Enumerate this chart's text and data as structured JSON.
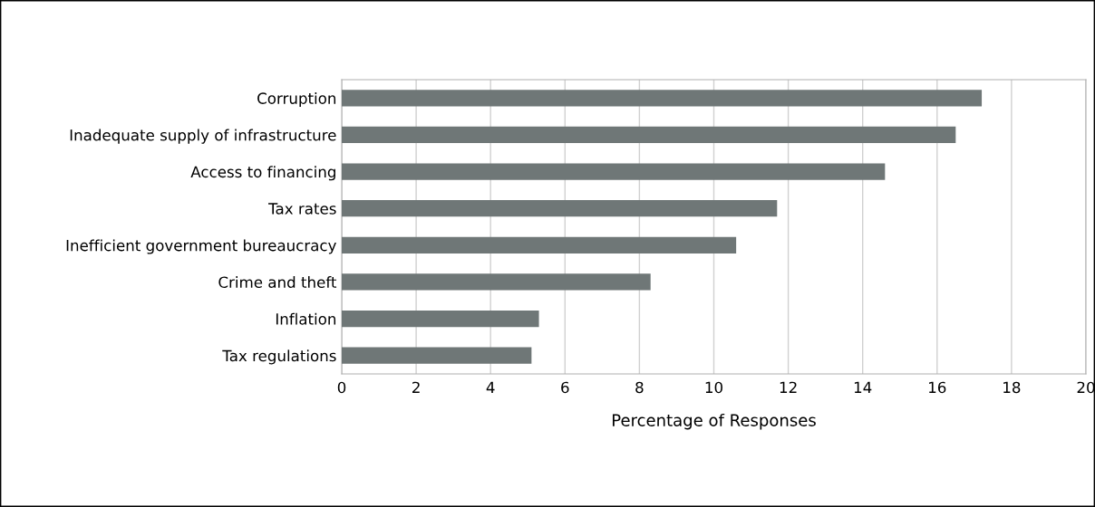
{
  "chart_data": {
    "type": "bar",
    "orientation": "horizontal",
    "xlabel": "Percentage of Responses",
    "categories": [
      "Corruption",
      "Inadequate supply of infrastructure",
      "Access to financing",
      "Tax rates",
      "Inefficient government bureaucracy",
      "Crime and theft",
      "Inflation",
      "Tax regulations"
    ],
    "values": [
      17.2,
      16.5,
      14.6,
      11.7,
      10.6,
      8.3,
      5.3,
      5.1
    ],
    "color": "#6f7777",
    "xlim": [
      0,
      20
    ],
    "xticks": [
      0,
      2,
      4,
      6,
      8,
      10,
      12,
      14,
      16,
      18,
      20
    ],
    "grid": "x"
  }
}
